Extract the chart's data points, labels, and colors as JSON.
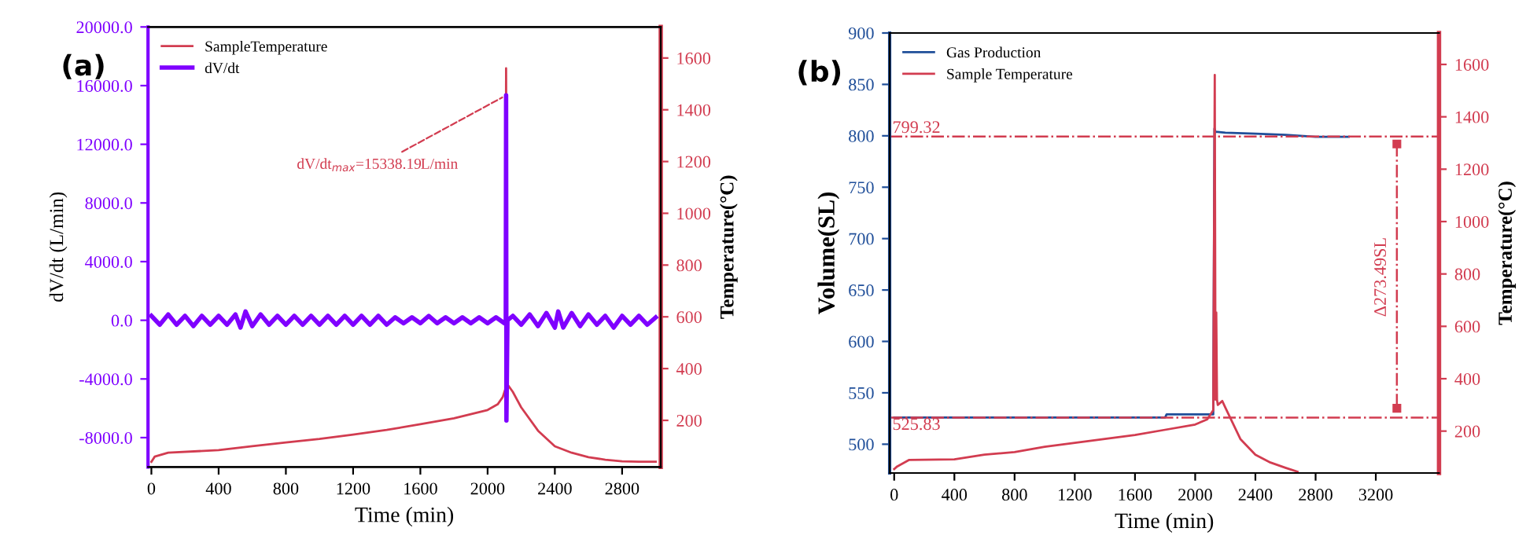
{
  "chart_data": [
    {
      "type": "line",
      "title": "(a)",
      "xlabel": "Time (min)",
      "ylabel": "dV/dt (L/min)",
      "y2label": "Temperature(°C)",
      "xlim": [
        -20,
        3030
      ],
      "xticks": [
        0,
        400,
        800,
        1200,
        1600,
        2000,
        2400,
        2800
      ],
      "ylim": [
        -10000,
        20000
      ],
      "yticks": [
        {
          "value": -8000,
          "label": "-8000.0"
        },
        {
          "value": -4000,
          "label": "-4000.0"
        },
        {
          "value": 0,
          "label": "0.0"
        },
        {
          "value": 4000,
          "label": "4000.0"
        },
        {
          "value": 8000,
          "label": "8000.0"
        },
        {
          "value": 12000,
          "label": "12000.0"
        },
        {
          "value": 16000,
          "label": "16000.0"
        },
        {
          "value": 20000,
          "label": "20000.0"
        }
      ],
      "y2lim": [
        20,
        1720
      ],
      "y2ticks": [
        200,
        400,
        600,
        800,
        1000,
        1200,
        1400,
        1600
      ],
      "legend": "top left",
      "grid": false,
      "marker": "none",
      "line_style": "solid",
      "series": [
        {
          "name": "SampleTemperature",
          "color": "#d23c50",
          "axis": "y2",
          "x": [
            0,
            20,
            100,
            400,
            600,
            800,
            1000,
            1200,
            1400,
            1600,
            1800,
            2000,
            2060,
            2090,
            2105,
            2110,
            2115,
            2125,
            2150,
            2200,
            2300,
            2400,
            2500,
            2600,
            2700,
            2800,
            2900,
            3000
          ],
          "values": [
            40,
            60,
            75,
            85,
            100,
            115,
            128,
            145,
            163,
            185,
            208,
            240,
            262,
            290,
            320,
            1560,
            310,
            333,
            310,
            250,
            160,
            100,
            75,
            58,
            48,
            42,
            40,
            40
          ]
        },
        {
          "name": "dV/dt",
          "color": "#7f00ff",
          "x": [
            0,
            50,
            100,
            150,
            200,
            250,
            300,
            350,
            400,
            450,
            500,
            530,
            560,
            600,
            650,
            700,
            750,
            800,
            850,
            900,
            950,
            1000,
            1050,
            1100,
            1150,
            1200,
            1250,
            1300,
            1350,
            1400,
            1450,
            1500,
            1550,
            1600,
            1650,
            1700,
            1750,
            1800,
            1850,
            1900,
            1950,
            2000,
            2050,
            2100,
            2108,
            2110,
            2112,
            2118,
            2150,
            2200,
            2250,
            2300,
            2350,
            2400,
            2420,
            2450,
            2500,
            2550,
            2600,
            2650,
            2700,
            2750,
            2800,
            2850,
            2900,
            2950,
            3000
          ],
          "values": [
            300,
            -300,
            400,
            -300,
            300,
            -400,
            300,
            -300,
            300,
            -300,
            400,
            -500,
            600,
            -400,
            400,
            -300,
            300,
            -300,
            300,
            -300,
            300,
            -300,
            300,
            -300,
            300,
            -300,
            300,
            -300,
            300,
            -300,
            200,
            -200,
            200,
            -200,
            300,
            -200,
            200,
            -200,
            200,
            -200,
            200,
            -200,
            200,
            -200,
            0,
            15338,
            -6840,
            0,
            300,
            -300,
            400,
            -400,
            500,
            -500,
            600,
            -500,
            500,
            -400,
            400,
            -300,
            300,
            -500,
            300,
            -300,
            300,
            -300,
            200
          ]
        }
      ],
      "annotations": [
        {
          "text": "dV/dt$_{max}$=15338.19L/min",
          "x": 2110,
          "y": 15338
        }
      ]
    },
    {
      "type": "line",
      "title": "(b)",
      "xlabel": "Time (min)",
      "ylabel": "Volume(SL)",
      "y2label": "Temperature(°C)",
      "xlim": [
        -30,
        3620
      ],
      "xticks": [
        0,
        400,
        800,
        1200,
        1600,
        2000,
        2400,
        2800,
        3200
      ],
      "ylim": [
        472,
        900
      ],
      "yticks": [
        500,
        550,
        600,
        650,
        700,
        750,
        800,
        850,
        900
      ],
      "y2lim": [
        40,
        1720
      ],
      "y2ticks": [
        200,
        400,
        600,
        800,
        1000,
        1200,
        1400,
        1600
      ],
      "legend": "top left",
      "grid": false,
      "marker": "none",
      "line_style": "solid",
      "series": [
        {
          "name": "Gas Production",
          "color": "#1f4e99",
          "x": [
            0,
            1800,
            1810,
            2120,
            2128,
            2135,
            2200,
            2400,
            2600,
            2700,
            2800,
            3020
          ],
          "values": [
            526,
            526,
            529,
            529,
            807,
            804,
            803,
            802,
            801,
            800,
            799,
            799
          ]
        },
        {
          "type": "line",
          "color": "#d23c50",
          "line_style": "dashdot",
          "marker": "square",
          "x": [
            3340,
            3340
          ],
          "values": [
            792,
            535
          ]
        },
        {
          "name": "Sample Temperature",
          "color": "#d23c50",
          "axis": "y2",
          "x": [
            0,
            20,
            100,
            400,
            600,
            800,
            1000,
            1200,
            1400,
            1600,
            1800,
            2000,
            2080,
            2120,
            2130,
            2135,
            2140,
            2145,
            2150,
            2180,
            2200,
            2300,
            2400,
            2500,
            2600,
            2680
          ],
          "values": [
            55,
            65,
            90,
            92,
            110,
            120,
            140,
            155,
            170,
            185,
            205,
            225,
            245,
            280,
            1560,
            320,
            653,
            320,
            300,
            315,
            290,
            170,
            110,
            80,
            60,
            45
          ]
        }
      ],
      "ref_lines": [
        {
          "axis": "y",
          "value": 799.32,
          "label": "799.32",
          "color": "#d23c50",
          "line_style": "dashdot"
        },
        {
          "axis": "y",
          "value": 525.83,
          "label": "525.83",
          "color": "#d23c50",
          "line_style": "dashdot"
        }
      ],
      "annotations": [
        "Δ273.49SL"
      ]
    }
  ]
}
